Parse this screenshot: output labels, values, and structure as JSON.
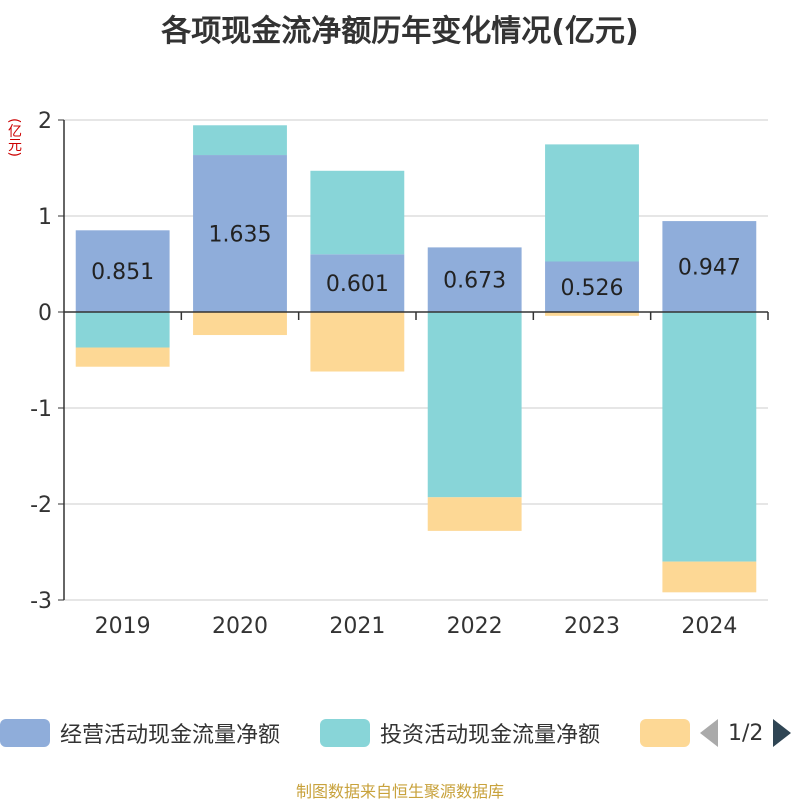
{
  "chart_data": {
    "type": "bar",
    "stacked": true,
    "title": "各项现金流净额历年变化情况(亿元)",
    "ylabel": "(亿元)",
    "categories": [
      "2019",
      "2020",
      "2021",
      "2022",
      "2023",
      "2024"
    ],
    "ylim": [
      -3,
      2
    ],
    "yticks": [
      2,
      1,
      0,
      -1,
      -2,
      -3
    ],
    "grid": true,
    "series": [
      {
        "name": "经营活动现金流量净额",
        "color": "#8fadda",
        "values": [
          0.851,
          1.635,
          0.601,
          0.673,
          0.526,
          0.947
        ]
      },
      {
        "name": "投资活动现金流量净额",
        "color": "#88d5d8",
        "values": [
          -0.37,
          0.31,
          0.87,
          -1.93,
          1.22,
          -2.6
        ]
      },
      {
        "name": "",
        "color": "#fdd895",
        "values": [
          -0.2,
          -0.24,
          -0.62,
          -0.35,
          -0.04,
          -0.32
        ]
      }
    ],
    "data_labels": [
      "0.851",
      "1.635",
      "0.601",
      "0.673",
      "0.526",
      "0.947"
    ]
  },
  "legend": {
    "items": [
      {
        "label": "经营活动现金流量净额",
        "color": "#8fadda"
      },
      {
        "label": "投资活动现金流量净额",
        "color": "#88d5d8"
      },
      {
        "label": "",
        "color": "#fdd895"
      }
    ],
    "page": "1/2"
  },
  "source": "制图数据来自恒生聚源数据库"
}
